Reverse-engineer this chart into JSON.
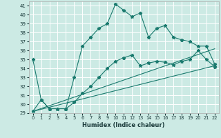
{
  "xlabel": "Humidex (Indice chaleur)",
  "bg_color": "#cceae4",
  "grid_color": "#ffffff",
  "line_color": "#1a7a6e",
  "xlim": [
    -0.5,
    22.5
  ],
  "ylim": [
    29,
    41.5
  ],
  "yticks": [
    29,
    30,
    31,
    32,
    33,
    34,
    35,
    36,
    37,
    38,
    39,
    40,
    41
  ],
  "xticks": [
    0,
    1,
    2,
    3,
    4,
    5,
    6,
    7,
    8,
    9,
    10,
    11,
    12,
    13,
    14,
    15,
    16,
    17,
    18,
    19,
    20,
    21,
    22
  ],
  "line1_x": [
    0,
    1,
    2,
    3,
    4,
    5,
    6,
    7,
    8,
    9,
    10,
    11,
    12,
    13,
    14,
    15,
    16,
    17,
    18,
    19,
    20,
    21,
    22
  ],
  "line1_y": [
    35.0,
    30.5,
    29.5,
    29.5,
    29.5,
    33.0,
    36.5,
    37.5,
    38.5,
    39.0,
    41.2,
    40.5,
    39.8,
    40.2,
    37.5,
    38.5,
    38.8,
    37.5,
    37.2,
    37.0,
    36.5,
    36.5,
    34.5
  ],
  "line2_x": [
    0,
    1,
    2,
    3,
    4,
    5,
    6,
    7,
    8,
    9,
    10,
    11,
    12,
    13,
    14,
    15,
    16,
    17,
    18,
    19,
    20,
    21,
    22
  ],
  "line2_y": [
    29.2,
    30.5,
    29.5,
    29.5,
    29.5,
    30.2,
    31.2,
    32.0,
    33.0,
    34.0,
    34.8,
    35.2,
    35.5,
    34.3,
    34.6,
    34.8,
    34.7,
    34.4,
    34.8,
    35.0,
    36.0,
    35.0,
    34.2
  ],
  "line3_x": [
    0,
    22
  ],
  "line3_y": [
    29.2,
    34.3
  ],
  "line4_x": [
    0,
    22
  ],
  "line4_y": [
    29.2,
    36.2
  ],
  "lw": 0.8,
  "marker_style": "*",
  "marker_size": 3.5
}
